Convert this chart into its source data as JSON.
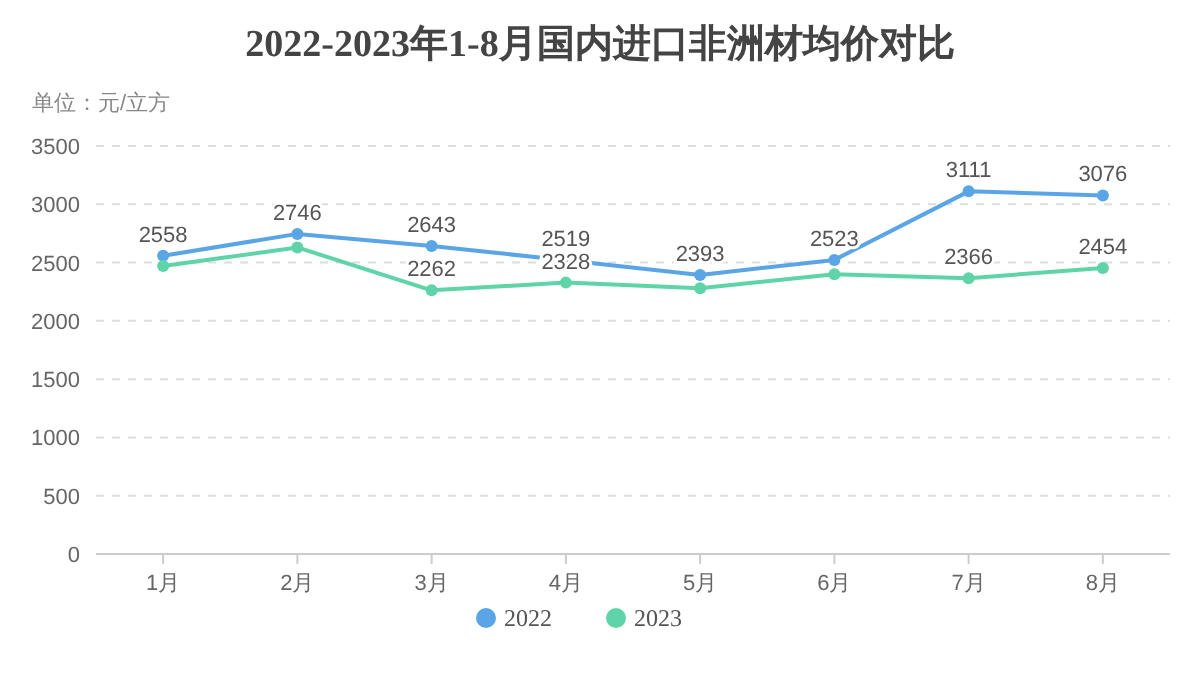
{
  "chart_data": {
    "type": "line",
    "title": "2022-2023年1-8月国内进口非洲材均价对比",
    "ylabel": "单位：元/立方",
    "categories": [
      "1月",
      "2月",
      "3月",
      "4月",
      "5月",
      "6月",
      "7月",
      "8月"
    ],
    "series": [
      {
        "name": "2022",
        "color": "#5aa5e6",
        "values": [
          2558,
          2746,
          2643,
          2519,
          2393,
          2523,
          3111,
          3076
        ],
        "value_labels": [
          "2558",
          "2746",
          "2643",
          "2519",
          "2393",
          "2523",
          "3111",
          "3076"
        ]
      },
      {
        "name": "2023",
        "color": "#5fd4a8",
        "values": [
          2470,
          2630,
          2262,
          2328,
          2280,
          2400,
          2366,
          2454
        ],
        "value_labels": [
          null,
          null,
          "2262",
          "2328",
          null,
          null,
          "2366",
          "2454"
        ]
      }
    ],
    "ylim": [
      0,
      3500
    ],
    "yticks": [
      0,
      500,
      1000,
      1500,
      2000,
      2500,
      3000,
      3500
    ],
    "grid": "y",
    "legend": "bottom",
    "marker": "circle",
    "line_style": "solid"
  }
}
